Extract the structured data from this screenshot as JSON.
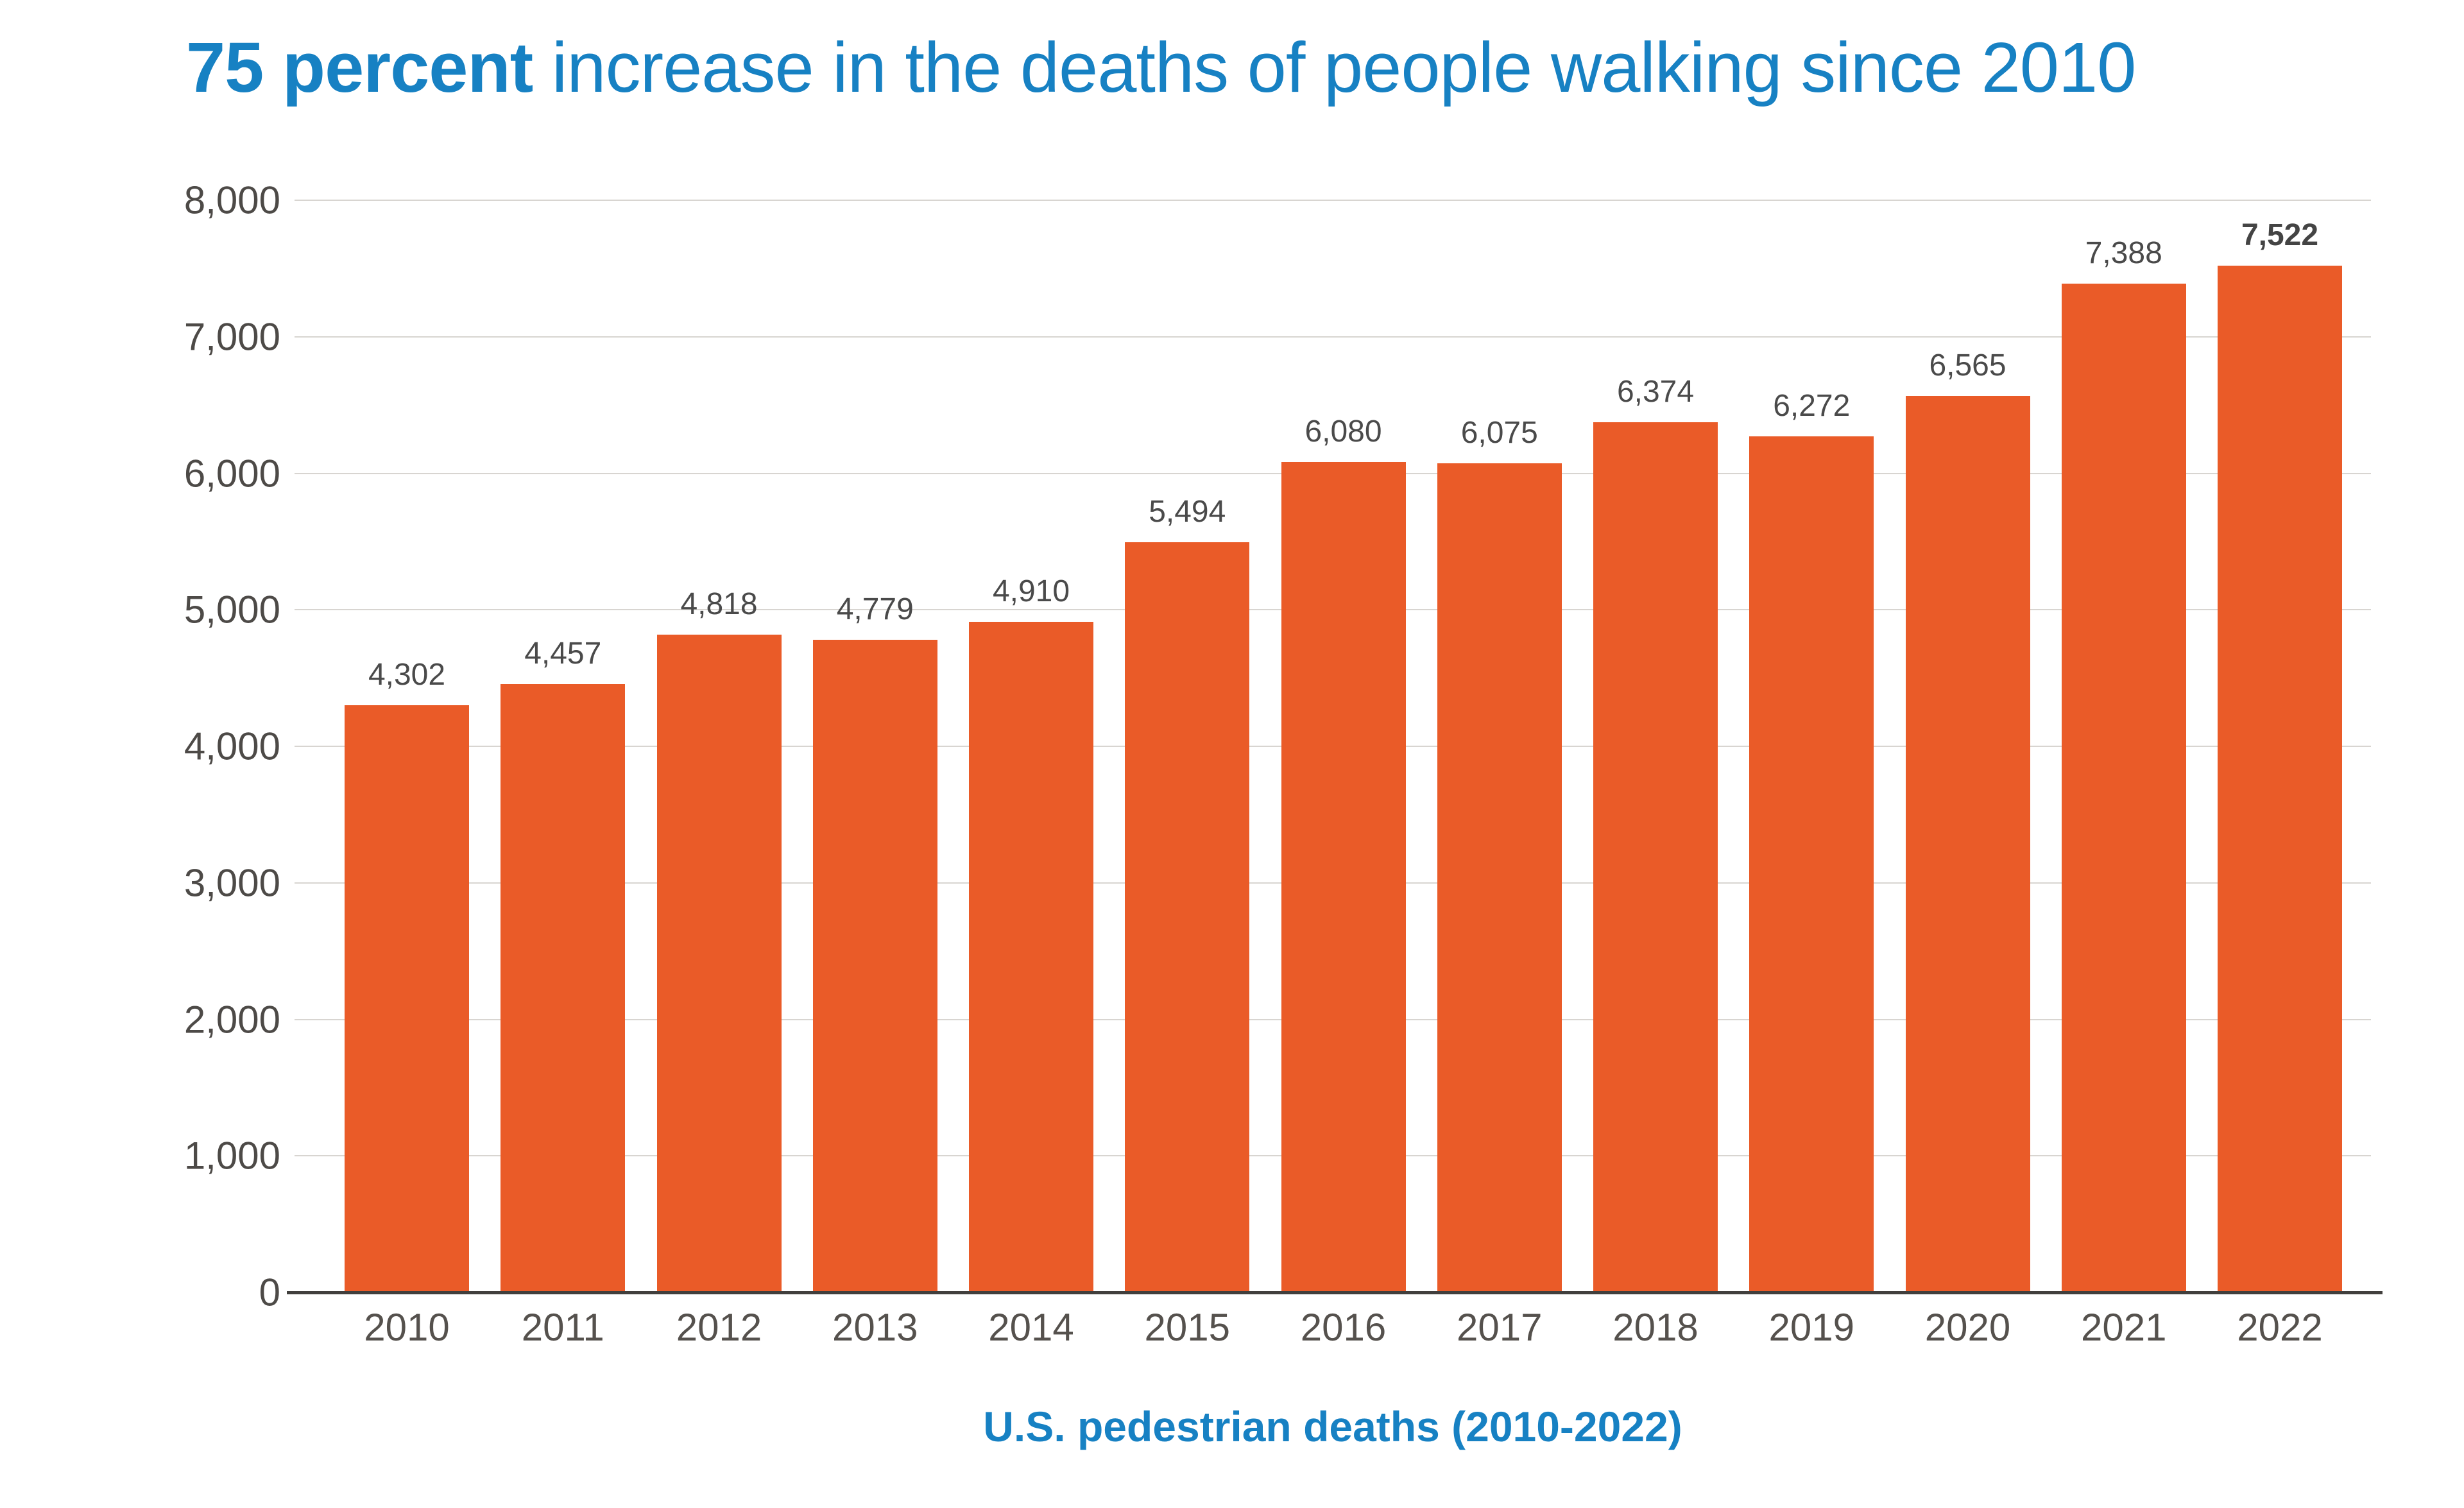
{
  "header": {
    "title_full": "75 percent increase in the deaths of people walking since 2010"
  },
  "chart_data": {
    "type": "bar",
    "title": "75 percent increase in the deaths of people walking since 2010",
    "title_bold": "75 percent",
    "title_rest": " increase in the deaths of people walking since 2010",
    "xlabel": "U.S. pedestrian deaths (2010-2022)",
    "ylabel": "",
    "categories": [
      "2010",
      "2011",
      "2012",
      "2013",
      "2014",
      "2015",
      "2016",
      "2017",
      "2018",
      "2019",
      "2020",
      "2021",
      "2022"
    ],
    "values": [
      4302,
      4457,
      4818,
      4779,
      4910,
      5494,
      6080,
      6075,
      6374,
      6272,
      6565,
      7388,
      7522
    ],
    "value_labels": [
      "4,302",
      "4,457",
      "4,818",
      "4,779",
      "4,910",
      "5,494",
      "6,080",
      "6,075",
      "6,374",
      "6,272",
      "6,565",
      "7,388",
      "7,522"
    ],
    "emphasized_value_label": "7,522",
    "ylim": [
      0,
      8000
    ],
    "ytick_interval": 1000,
    "ytick_labels": [
      "0",
      "1,000",
      "2,000",
      "3,000",
      "4,000",
      "5,000",
      "6,000",
      "7,000",
      "8,000"
    ],
    "grid": "horizontal",
    "legend": "none",
    "colors": {
      "bar": "#EA5B28",
      "title": "#1781C3",
      "xlabel": "#1781C3",
      "value_label": "#4A4A4A",
      "tick_label": "#4D4A47",
      "gridline": "#D8D5D1",
      "axis_line": "#413F3D",
      "background": "#FFFFFF"
    }
  }
}
